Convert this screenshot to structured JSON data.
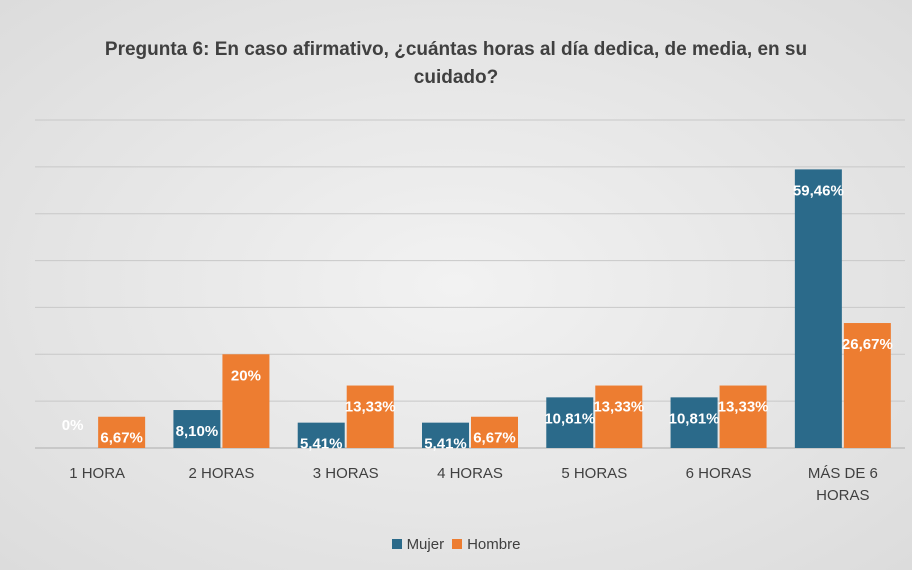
{
  "chart_data": {
    "type": "bar",
    "title": "Pregunta 6: En caso afirmativo, ¿cuántas horas al día dedica, de media, en su cuidado?",
    "categories": [
      "1 HORA",
      "2 HORAS",
      "3 HORAS",
      "4 HORAS",
      "5 HORAS",
      "6 HORAS",
      "MÁS DE 6 HORAS"
    ],
    "series": [
      {
        "name": "Mujer",
        "color": "#2b6a8a",
        "values": [
          0,
          8.1,
          5.41,
          5.41,
          10.81,
          10.81,
          59.46
        ],
        "value_labels": [
          "0%",
          "8,10%",
          "5,41%",
          "5,41%",
          "10,81%",
          "10,81%",
          "59,46%"
        ]
      },
      {
        "name": "Hombre",
        "color": "#ed7d31",
        "values": [
          6.67,
          20,
          13.33,
          6.67,
          13.33,
          13.33,
          26.67
        ],
        "value_labels": [
          "6,67%",
          "20%",
          "13,33%",
          "6,67%",
          "13,33%",
          "13,33%",
          "26,67%"
        ]
      }
    ],
    "ylim": [
      0,
      70
    ],
    "yticks": [
      0,
      10,
      20,
      30,
      40,
      50,
      60,
      70
    ],
    "grid": true,
    "legend": "bottom"
  }
}
